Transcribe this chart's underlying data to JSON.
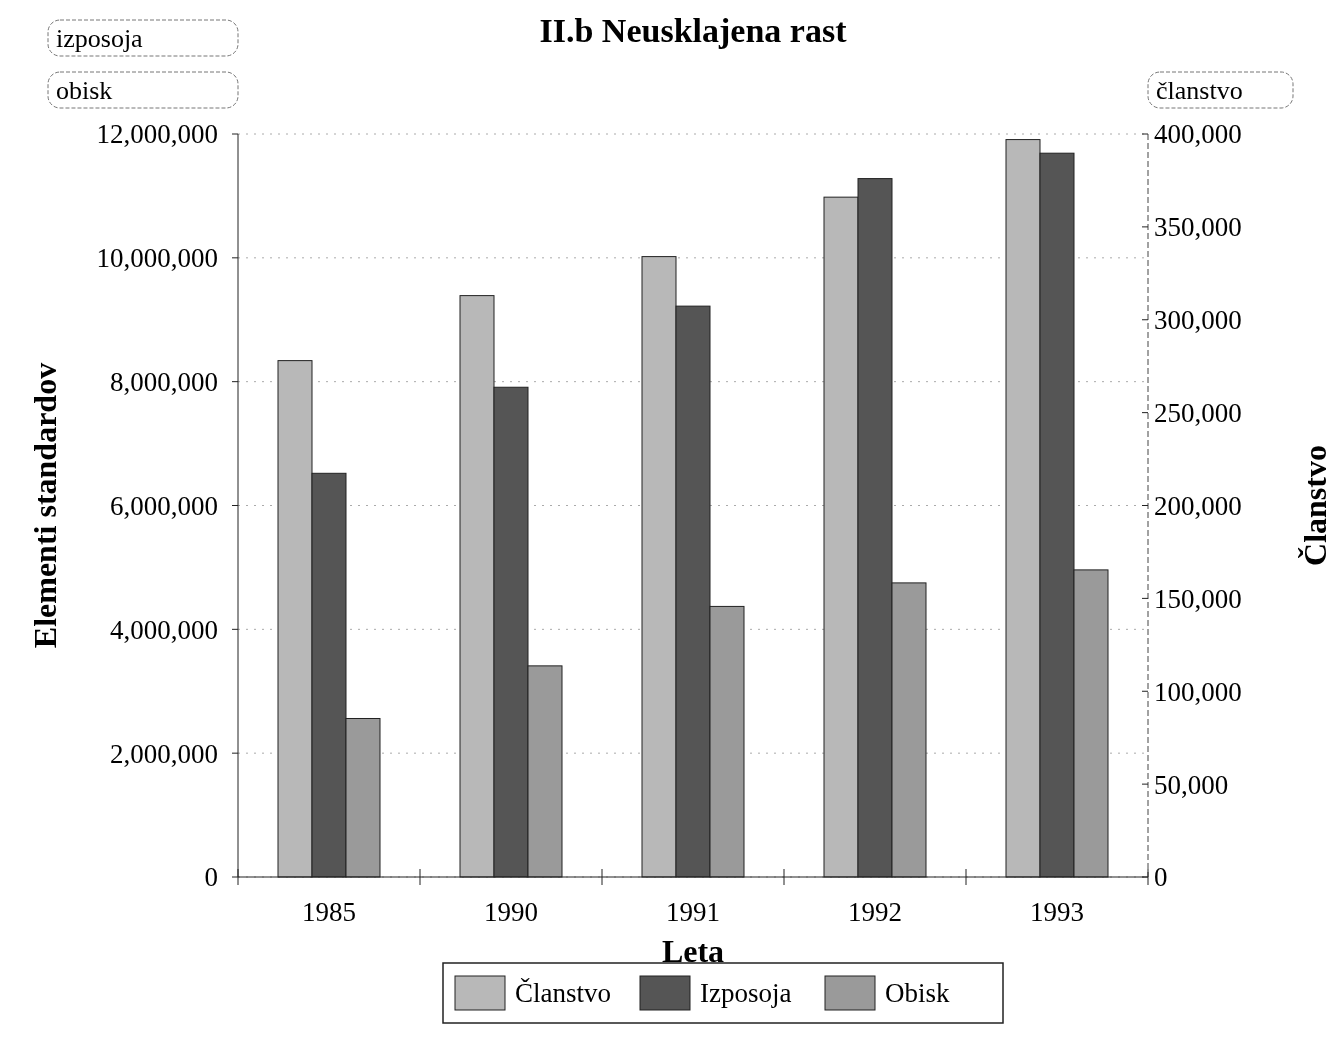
{
  "chart_data": {
    "type": "bar",
    "title": "II.b Neusklajena rast",
    "xlabel": "Leta",
    "ylabel": "Elementi standardov",
    "y2label": "Članstvo",
    "annotations": [
      "izposoja",
      "obisk",
      "članstvo"
    ],
    "categories": [
      "1985",
      "1990",
      "1991",
      "1992",
      "1993"
    ],
    "series": [
      {
        "name": "Članstvo",
        "color": "#b8b8b8",
        "axis": "y2",
        "values": [
          278000,
          313000,
          334000,
          366000,
          397000
        ]
      },
      {
        "name": "Izposoja",
        "color": "#555555",
        "values": [
          6520000,
          7910000,
          9220000,
          11280000,
          11690000
        ]
      },
      {
        "name": "Obisk",
        "color": "#9a9a9a",
        "values": [
          2560000,
          3410000,
          4370000,
          4750000,
          4960000
        ]
      }
    ],
    "ylim": [
      0,
      12000000
    ],
    "yticks": [
      {
        "value": 0,
        "label": "0"
      },
      {
        "value": 2000000,
        "label": "2,000,000"
      },
      {
        "value": 4000000,
        "label": "4,000,000"
      },
      {
        "value": 6000000,
        "label": "6,000,000"
      },
      {
        "value": 8000000,
        "label": "8,000,000"
      },
      {
        "value": 10000000,
        "label": "10,000,000"
      },
      {
        "value": 12000000,
        "label": "12,000,000"
      }
    ],
    "y2lim": [
      0,
      400000
    ],
    "y2ticks": [
      {
        "value": 0,
        "label": "0"
      },
      {
        "value": 50000,
        "label": "50,000"
      },
      {
        "value": 100000,
        "label": "100,000"
      },
      {
        "value": 150000,
        "label": "150,000"
      },
      {
        "value": 200000,
        "label": "200,000"
      },
      {
        "value": 250000,
        "label": "250,000"
      },
      {
        "value": 300000,
        "label": "300,000"
      },
      {
        "value": 350000,
        "label": "350,000"
      },
      {
        "value": 400000,
        "label": "400,000"
      }
    ],
    "grid": "y",
    "legend": "bottom"
  }
}
